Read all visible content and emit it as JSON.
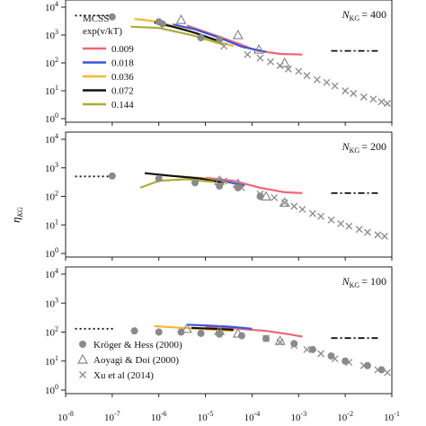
{
  "chart_data": {
    "type": "line",
    "figure": {
      "ylabel": "η",
      "ylabel_sub": "KG",
      "xscale": "log",
      "yscale": "log",
      "xlim": [
        1e-08,
        0.1
      ],
      "ylim": [
        1,
        10000
      ],
      "x_ticks": [
        1e-08,
        1e-07,
        1e-06,
        1e-05,
        0.0001,
        0.001,
        0.01,
        0.1
      ],
      "x_tick_base": "10",
      "x_tick_exps": [
        "-8",
        "-7",
        "-6",
        "-5",
        "-4",
        "-3",
        "-2",
        "-1"
      ],
      "y_ticks": [
        1,
        10,
        100,
        1000,
        10000
      ],
      "y_tick_base": "10",
      "y_tick_exps": [
        "0",
        "1",
        "2",
        "3",
        "4"
      ]
    },
    "legend_lines": {
      "title_line1": "MCSS",
      "title_line2": "exp(v/kT)",
      "entries": [
        {
          "label": "0.009",
          "color": "#f06478"
        },
        {
          "label": "0.018",
          "color": "#3a55d9"
        },
        {
          "label": "0.036",
          "color": "#f5b833"
        },
        {
          "label": "0.072",
          "color": "#111111"
        },
        {
          "label": "0.144",
          "color": "#a8ad3a"
        }
      ]
    },
    "legend_markers": [
      {
        "marker": "circle",
        "label": "Kröger & Hess (2000)"
      },
      {
        "marker": "triangle",
        "label": "Aoyagi & Doi (2000)"
      },
      {
        "marker": "cross",
        "label": "Xu et al (2014)"
      }
    ],
    "panels": [
      {
        "label": "N",
        "label_sub": "KG",
        "label_value": "= 400",
        "dotted_level": 5000,
        "dashdot_level": 270,
        "series": [
          {
            "name": "0.009",
            "color": "#f06478",
            "x": [
              4e-06,
              1e-05,
              5e-05,
              0.00012,
              0.0004,
              0.0012
            ],
            "y": [
              2200,
              1300,
              500,
              280,
              210,
              200
            ]
          },
          {
            "name": "0.018",
            "color": "#3a55d9",
            "x": [
              2e-06,
              6e-06,
              2e-05,
              6e-05,
              0.0002
            ],
            "y": [
              2400,
              1600,
              800,
              380,
              250
            ]
          },
          {
            "name": "0.036",
            "color": "#f5b833",
            "x": [
              3e-07,
              1e-06,
              4e-06,
              1.5e-05,
              4e-05
            ],
            "y": [
              3800,
              3000,
              1500,
              650,
              400
            ]
          },
          {
            "name": "0.072",
            "color": "#111111",
            "x": [
              8e-07,
              2e-06,
              6e-06,
              2e-05
            ],
            "y": [
              2800,
              2000,
              1200,
              600
            ]
          },
          {
            "name": "0.144",
            "color": "#a8ad3a",
            "x": [
              2.5e-07,
              1e-06,
              5e-06,
              2.5e-05
            ],
            "y": [
              2000,
              1800,
              1000,
              450
            ]
          }
        ],
        "kroger_hess": {
          "x": [
            1e-07,
            1e-06,
            1.2e-06,
            8e-06,
            2e-05
          ],
          "y": [
            4500,
            3000,
            2500,
            800,
            700
          ]
        },
        "aoyagi_doi": {
          "x": [
            3e-06,
            5e-05,
            0.00014,
            0.0005
          ],
          "y": [
            3500,
            1000,
            300,
            100
          ]
        },
        "xu": {
          "x": [
            2.5e-05,
            8e-05,
            0.00015,
            0.00025,
            0.0004,
            0.0006,
            0.001,
            0.0015,
            0.0025,
            0.004,
            0.006,
            0.01,
            0.015,
            0.025,
            0.04,
            0.06,
            0.08
          ],
          "y": [
            400,
            200,
            150,
            110,
            80,
            60,
            50,
            35,
            25,
            20,
            15,
            10,
            8,
            6,
            5,
            4,
            3.5
          ]
        }
      },
      {
        "label": "N",
        "label_sub": "KG",
        "label_value": "= 200",
        "dotted_level": 500,
        "dashdot_level": 130,
        "series": [
          {
            "name": "0.009",
            "color": "#f06478",
            "x": [
              1e-05,
              4e-05,
              0.00015,
              0.0005,
              0.0012
            ],
            "y": [
              450,
              350,
              200,
              140,
              130
            ]
          },
          {
            "name": "0.018",
            "color": "#3a55d9",
            "x": [
              4e-06,
              1e-05,
              3e-05,
              7e-05
            ],
            "y": [
              480,
              420,
              320,
              240
            ]
          },
          {
            "name": "0.036",
            "color": "#f5b833",
            "x": [
              1e-06,
              3e-06,
              1e-05,
              3e-05
            ],
            "y": [
              550,
              500,
              420,
              300
            ]
          },
          {
            "name": "0.072",
            "color": "#111111",
            "x": [
              5e-07,
              2e-06,
              8e-06,
              2.5e-05
            ],
            "y": [
              650,
              520,
              420,
              300
            ]
          },
          {
            "name": "0.144",
            "color": "#a8ad3a",
            "x": [
              4e-07,
              1e-06,
              4e-06,
              1.5e-05
            ],
            "y": [
              200,
              350,
              400,
              320
            ]
          }
        ],
        "kroger_hess": {
          "x": [
            1e-07,
            1e-06,
            6e-06,
            2e-05,
            5e-05,
            0.00015
          ],
          "y": [
            520,
            420,
            300,
            230,
            200,
            100
          ]
        },
        "aoyagi_doi": {
          "x": [
            2e-05,
            5e-05,
            0.0002,
            0.0005
          ],
          "y": [
            350,
            280,
            100,
            60
          ]
        },
        "xu": {
          "x": [
            2.5e-05,
            6e-05,
            0.00015,
            0.0003,
            0.0005,
            0.0008,
            0.0012,
            0.002,
            0.003,
            0.005,
            0.008,
            0.012,
            0.02,
            0.03,
            0.05,
            0.07
          ],
          "y": [
            350,
            200,
            120,
            90,
            60,
            45,
            35,
            25,
            20,
            15,
            11,
            9,
            7,
            5.5,
            4.5,
            4
          ]
        }
      },
      {
        "label": "N",
        "label_sub": "KG",
        "label_value": "= 100",
        "dotted_level": 130,
        "dashdot_level": 62,
        "series": [
          {
            "name": "0.009",
            "color": "#f06478",
            "x": [
              1e-05,
              5e-05,
              0.0002,
              0.0006,
              0.0012
            ],
            "y": [
              150,
              130,
              110,
              85,
              70
            ]
          },
          {
            "name": "0.018",
            "color": "#3a55d9",
            "x": [
              4e-06,
              1e-05,
              4e-05,
              0.0001
            ],
            "y": [
              180,
              170,
              150,
              130
            ]
          },
          {
            "name": "0.036",
            "color": "#f5b833",
            "x": [
              8e-07,
              3e-06,
              1.5e-05,
              4e-05
            ],
            "y": [
              160,
              140,
              120,
              110
            ]
          },
          {
            "name": "0.072",
            "color": "#111111",
            "x": [
              5e-06,
              1.5e-05,
              4e-05
            ],
            "y": [
              140,
              130,
              120
            ]
          }
        ],
        "kroger_hess": {
          "x": [
            3e-07,
            1e-06,
            3e-06,
            8e-06,
            2e-05,
            6e-05,
            0.0002,
            0.0008,
            0.002,
            0.005,
            0.01,
            0.03,
            0.06
          ],
          "y": [
            110,
            100,
            100,
            90,
            85,
            75,
            60,
            40,
            25,
            15,
            10,
            7,
            5
          ]
        },
        "aoyagi_doi": {
          "x": [
            4e-06,
            2e-05,
            5e-05,
            0.0004
          ],
          "y": [
            130,
            110,
            90,
            50
          ]
        },
        "xu": {
          "x": [
            0.0002,
            0.0004,
            0.0008,
            0.0015,
            0.003,
            0.006,
            0.012,
            0.025,
            0.05,
            0.08
          ],
          "y": [
            60,
            45,
            35,
            25,
            18,
            12,
            9,
            7,
            5,
            4
          ]
        }
      }
    ]
  }
}
